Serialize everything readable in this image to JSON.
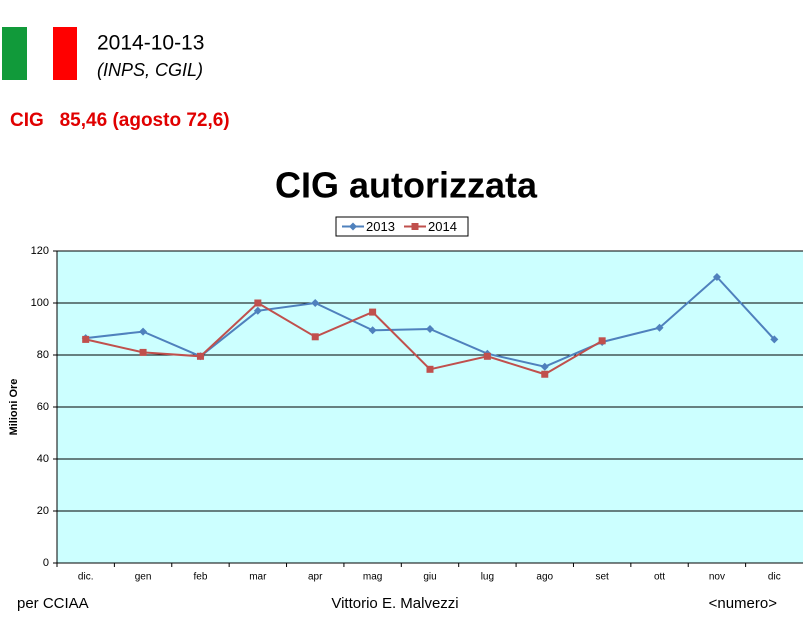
{
  "header": {
    "date": "2014-10-13",
    "source": "(INPS, CGIL)",
    "headline": "CIG   85,46 (agosto 72,6)"
  },
  "chart_data": {
    "type": "line",
    "title": "CIG autorizzata",
    "y_label": "Milioni Ore",
    "categories": [
      "dic.",
      "gen",
      "feb",
      "mar",
      "apr",
      "mag",
      "giu",
      "lug",
      "ago",
      "set",
      "ott",
      "nov",
      "dic"
    ],
    "series": [
      {
        "name": "2013",
        "color": "#4f81bd",
        "values": [
          86.5,
          89,
          79.5,
          97,
          100,
          89.5,
          90,
          80.5,
          75.5,
          85,
          90.5,
          110,
          86
        ]
      },
      {
        "name": "2014",
        "color": "#c0504d",
        "values": [
          86,
          81,
          79.5,
          100,
          87,
          96.5,
          74.5,
          79.5,
          72.6,
          85.46,
          null,
          null,
          null
        ]
      }
    ],
    "ylim": [
      0,
      120
    ],
    "yticks": [
      0,
      20,
      40,
      60,
      80,
      100,
      120
    ],
    "grid": true,
    "plot_background": "#ccffff",
    "legend": "top"
  },
  "footer": {
    "left": "per CCIAA",
    "center": "Vittorio E. Malvezzi",
    "right": "<numero>"
  }
}
